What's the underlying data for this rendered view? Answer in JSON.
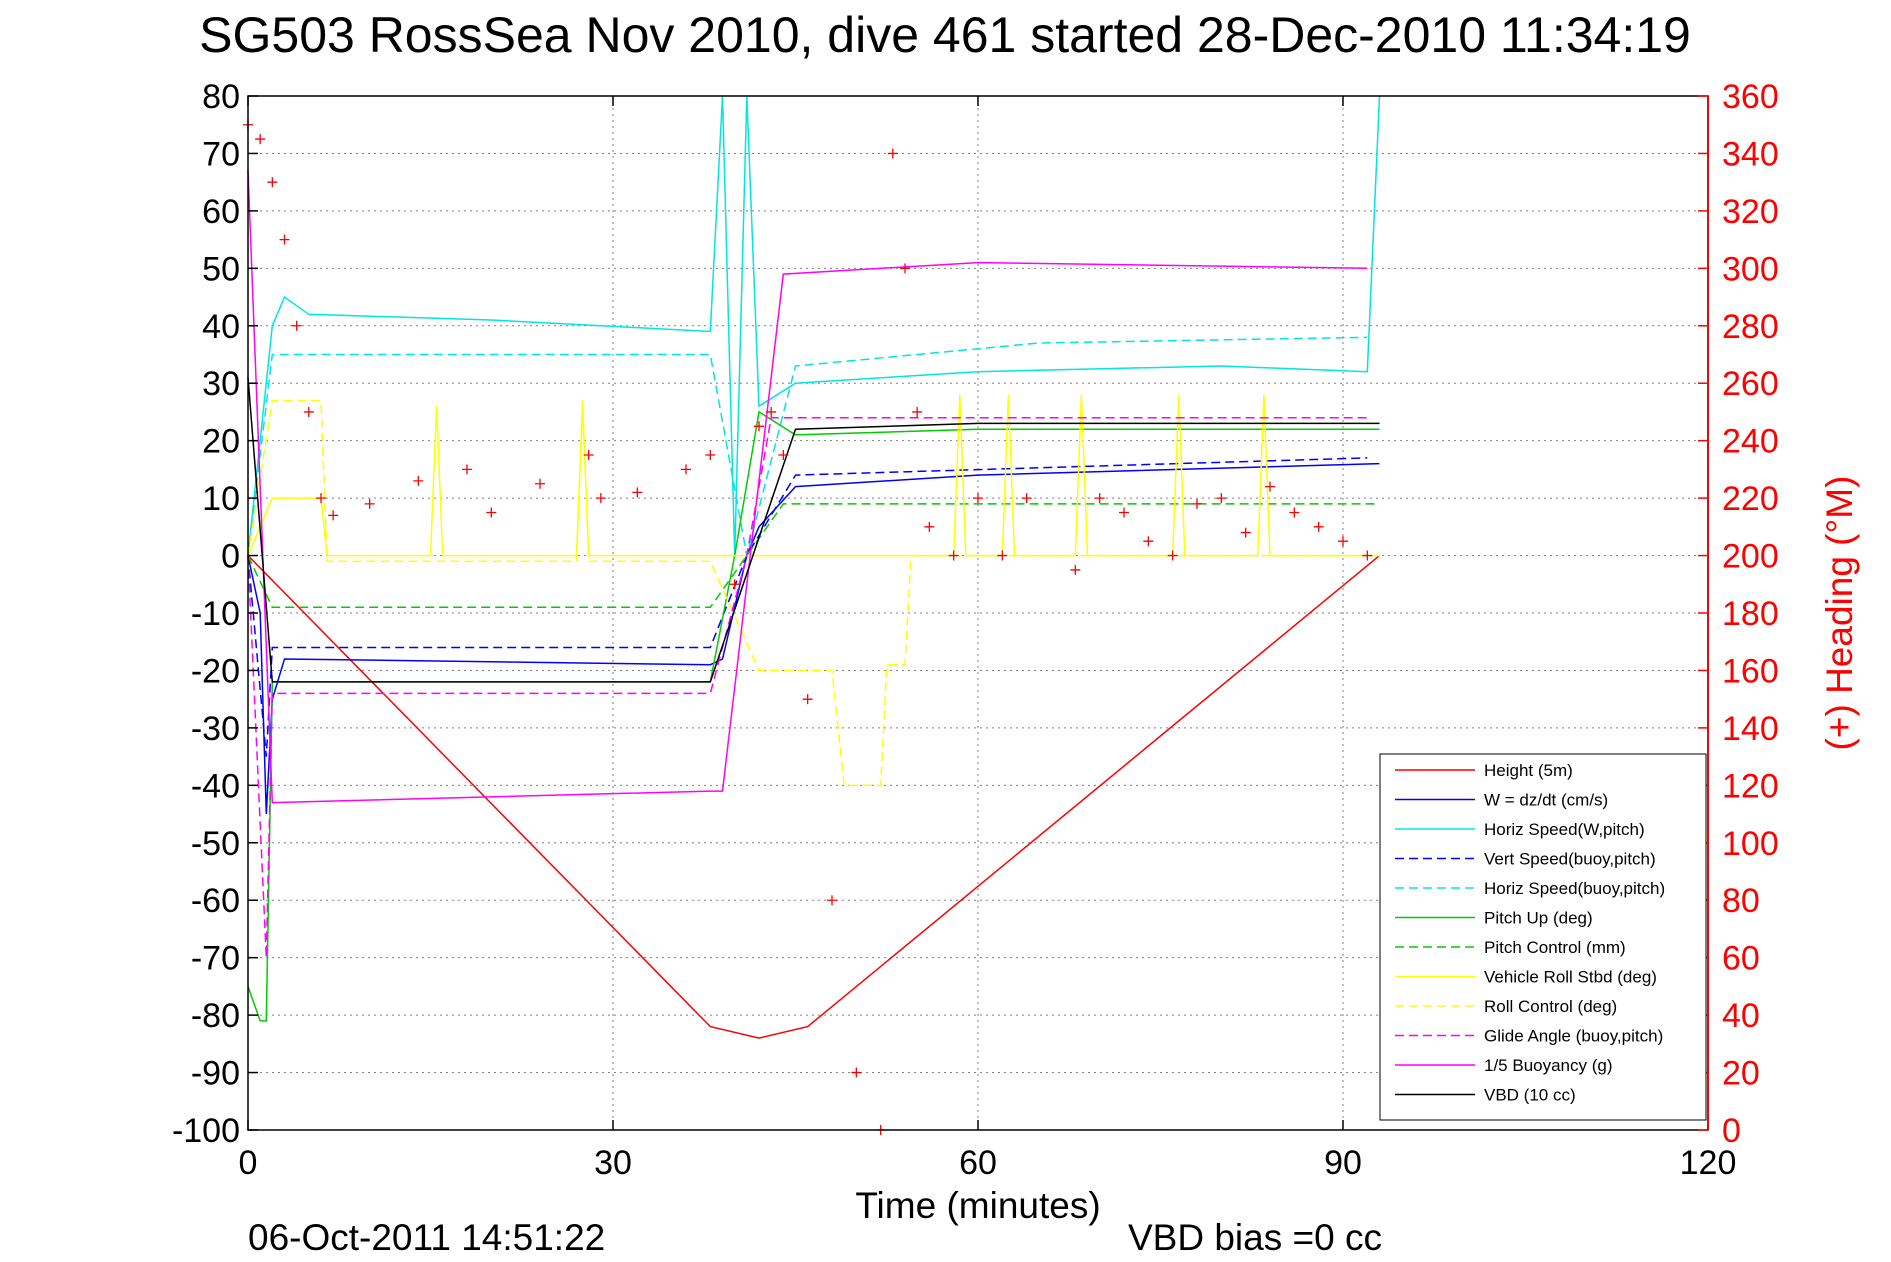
{
  "chart_data": {
    "type": "line",
    "title": "SG503 RossSea Nov 2010, dive 461 started 28-Dec-2010 11:34:19",
    "xlabel": "Time (minutes)",
    "ylabel_right": "(+) Heading (°M)",
    "xlim": [
      0,
      120
    ],
    "ylim": [
      -100,
      80
    ],
    "ylim_right": [
      0,
      360
    ],
    "x_ticks": [
      "0",
      "30",
      "60",
      "90",
      "120"
    ],
    "y_ticks": [
      "80",
      "70",
      "60",
      "50",
      "40",
      "30",
      "20",
      "10",
      "0",
      "-10",
      "-20",
      "-30",
      "-40",
      "-50",
      "-60",
      "-70",
      "-80",
      "-90",
      "-100"
    ],
    "y_ticks_right": [
      "360",
      "340",
      "320",
      "300",
      "280",
      "260",
      "240",
      "220",
      "200",
      "180",
      "160",
      "140",
      "120",
      "100",
      "80",
      "60",
      "40",
      "20",
      "0"
    ],
    "grid": true,
    "legend_position": "bottom-right",
    "footer_date": "06-Oct-2011 14:51:22",
    "footer_note": "VBD bias =0 cc",
    "colors": {
      "red": "#ff0000",
      "blue": "#0000ff",
      "cyan": "#00e5e5",
      "green": "#00cc00",
      "yellow": "#ffff00",
      "magenta": "#ff00ff",
      "black": "#000000"
    },
    "series": [
      {
        "name": "Height (5m)",
        "color": "#ff0000",
        "dash": "solid",
        "points": [
          [
            0,
            0
          ],
          [
            38,
            -82
          ],
          [
            42,
            -84
          ],
          [
            46,
            -82
          ],
          [
            93,
            0
          ]
        ]
      },
      {
        "name": "W = dz/dt (cm/s)",
        "color": "#0000ff",
        "dash": "solid",
        "points": [
          [
            0,
            0
          ],
          [
            1,
            -10
          ],
          [
            1.5,
            -45
          ],
          [
            2,
            -25
          ],
          [
            3,
            -18
          ],
          [
            38,
            -19
          ],
          [
            39,
            -18
          ],
          [
            41,
            0
          ],
          [
            42,
            5
          ],
          [
            45,
            12
          ],
          [
            60,
            14
          ],
          [
            93,
            16
          ]
        ]
      },
      {
        "name": "Horiz Speed(W,pitch)",
        "color": "#00e5e5",
        "dash": "solid",
        "points": [
          [
            0,
            0
          ],
          [
            2,
            40
          ],
          [
            3,
            45
          ],
          [
            5,
            42
          ],
          [
            20,
            41
          ],
          [
            38,
            39
          ],
          [
            39,
            80
          ],
          [
            40,
            0
          ],
          [
            41,
            80
          ],
          [
            42,
            26
          ],
          [
            45,
            30
          ],
          [
            60,
            32
          ],
          [
            80,
            33
          ],
          [
            92,
            32
          ],
          [
            93,
            80
          ]
        ]
      },
      {
        "name": "Vert Speed(buoy,pitch)",
        "color": "#0000ff",
        "dash": "dashed",
        "points": [
          [
            0,
            0
          ],
          [
            1.5,
            -35
          ],
          [
            2,
            -16
          ],
          [
            38,
            -16
          ],
          [
            41,
            0
          ],
          [
            45,
            14
          ],
          [
            92,
            17
          ]
        ]
      },
      {
        "name": "Horiz Speed(buoy,pitch)",
        "color": "#00e5e5",
        "dash": "dashed",
        "points": [
          [
            0,
            0
          ],
          [
            2,
            35
          ],
          [
            38,
            35
          ],
          [
            41,
            0
          ],
          [
            45,
            33
          ],
          [
            65,
            37
          ],
          [
            92,
            38
          ]
        ]
      },
      {
        "name": "Pitch Up (deg)",
        "color": "#00cc00",
        "dash": "solid",
        "points": [
          [
            0,
            -75
          ],
          [
            1,
            -81
          ],
          [
            1.5,
            -81
          ],
          [
            2,
            -22
          ],
          [
            38,
            -22
          ],
          [
            40,
            0
          ],
          [
            42,
            25
          ],
          [
            45,
            21
          ],
          [
            60,
            22
          ],
          [
            93,
            22
          ]
        ]
      },
      {
        "name": "Pitch Control (mm)",
        "color": "#00cc00",
        "dash": "dashed",
        "points": [
          [
            0,
            0
          ],
          [
            2,
            -9
          ],
          [
            38,
            -9
          ],
          [
            41,
            0
          ],
          [
            44,
            9
          ],
          [
            93,
            9
          ]
        ]
      },
      {
        "name": "Vehicle Roll Stbd (deg)",
        "color": "#ffff00",
        "dash": "solid",
        "points": [
          [
            0,
            0
          ],
          [
            2,
            10
          ],
          [
            6,
            10
          ],
          [
            6.5,
            0
          ],
          [
            15,
            0
          ],
          [
            15.5,
            26
          ],
          [
            16,
            0
          ],
          [
            27,
            0
          ],
          [
            27.5,
            26
          ],
          [
            28,
            0
          ],
          [
            38,
            0
          ],
          [
            40,
            0
          ],
          [
            48,
            0
          ],
          [
            49,
            0
          ],
          [
            51,
            0
          ],
          [
            52,
            0
          ],
          [
            54,
            0
          ],
          [
            58,
            0
          ],
          [
            58.5,
            28
          ],
          [
            59,
            0
          ],
          [
            62,
            0
          ],
          [
            62.5,
            28
          ],
          [
            63,
            0
          ],
          [
            68,
            0
          ],
          [
            68.5,
            28
          ],
          [
            69,
            0
          ],
          [
            76,
            0
          ],
          [
            76.5,
            28
          ],
          [
            77,
            0
          ],
          [
            83,
            0
          ],
          [
            83.5,
            28
          ],
          [
            84,
            0
          ],
          [
            93,
            0
          ]
        ]
      },
      {
        "name": "Roll Control (deg)",
        "color": "#ffff00",
        "dash": "dashed",
        "points": [
          [
            0,
            0
          ],
          [
            2,
            27
          ],
          [
            6,
            27
          ],
          [
            6.5,
            -1
          ],
          [
            27,
            -1
          ],
          [
            27.5,
            27
          ],
          [
            28,
            -1
          ],
          [
            38,
            -1
          ],
          [
            42,
            -20
          ],
          [
            48,
            -20
          ],
          [
            49,
            -40
          ],
          [
            52,
            -40
          ],
          [
            52.5,
            -19
          ],
          [
            54,
            -19
          ],
          [
            54.5,
            0
          ],
          [
            93,
            0
          ]
        ]
      },
      {
        "name": "Glide Angle (buoy,pitch)",
        "color": "#ff00ff",
        "dash": "dashed",
        "points": [
          [
            0,
            0
          ],
          [
            1.5,
            -70
          ],
          [
            2,
            -24
          ],
          [
            38,
            -24
          ],
          [
            41,
            0
          ],
          [
            43,
            24
          ],
          [
            92,
            24
          ]
        ]
      },
      {
        "name": "1/5 Buoyancy (g)",
        "color": "#ff00ff",
        "dash": "solid",
        "points": [
          [
            0,
            67
          ],
          [
            2,
            -43
          ],
          [
            38,
            -41
          ],
          [
            39,
            -41
          ],
          [
            44,
            49
          ],
          [
            60,
            51
          ],
          [
            92,
            50
          ]
        ]
      },
      {
        "name": "VBD (10 cc)",
        "color": "#000000",
        "dash": "solid",
        "points": [
          [
            0,
            31
          ],
          [
            2,
            -22
          ],
          [
            38,
            -22
          ],
          [
            45,
            22
          ],
          [
            60,
            23
          ],
          [
            93,
            23
          ]
        ]
      }
    ],
    "heading_points": [
      [
        0,
        350
      ],
      [
        1,
        345
      ],
      [
        2,
        330
      ],
      [
        3,
        310
      ],
      [
        4,
        280
      ],
      [
        5,
        250
      ],
      [
        6,
        220
      ],
      [
        7,
        214
      ],
      [
        10,
        218
      ],
      [
        14,
        226
      ],
      [
        18,
        230
      ],
      [
        20,
        215
      ],
      [
        24,
        225
      ],
      [
        28,
        235
      ],
      [
        29,
        220
      ],
      [
        32,
        222
      ],
      [
        36,
        230
      ],
      [
        38,
        235
      ],
      [
        40,
        190
      ],
      [
        42,
        245
      ],
      [
        43,
        250
      ],
      [
        44,
        235
      ],
      [
        46,
        150
      ],
      [
        48,
        80
      ],
      [
        50,
        20
      ],
      [
        52,
        0
      ],
      [
        53,
        340
      ],
      [
        54,
        300
      ],
      [
        55,
        250
      ],
      [
        56,
        210
      ],
      [
        58,
        200
      ],
      [
        60,
        220
      ],
      [
        62,
        200
      ],
      [
        64,
        220
      ],
      [
        68,
        195
      ],
      [
        70,
        220
      ],
      [
        72,
        215
      ],
      [
        74,
        205
      ],
      [
        76,
        200
      ],
      [
        78,
        218
      ],
      [
        80,
        220
      ],
      [
        82,
        208
      ],
      [
        84,
        224
      ],
      [
        86,
        215
      ],
      [
        88,
        210
      ],
      [
        90,
        205
      ],
      [
        92,
        200
      ]
    ]
  }
}
